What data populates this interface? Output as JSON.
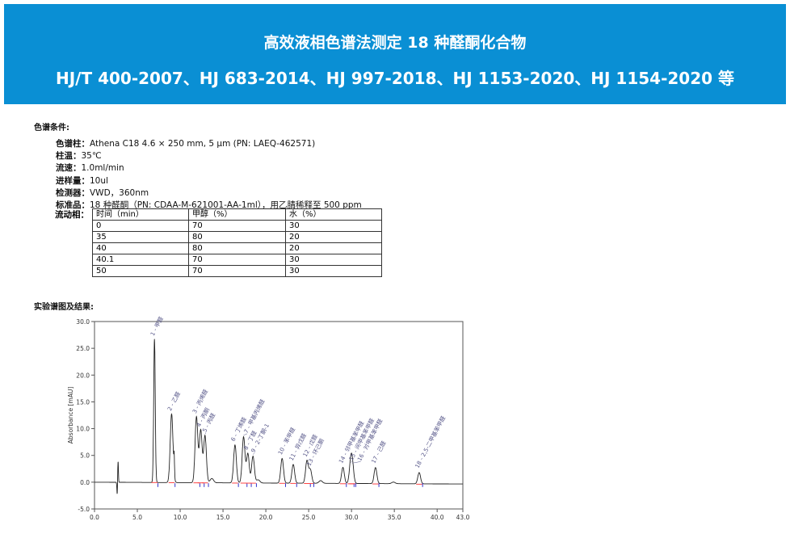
{
  "banner": {
    "title": "高效液相色谱法测定 18 种醛酮化合物",
    "standards": "HJ/T 400-2007、HJ 683-2014、HJ 997-2018、HJ 1153-2020、HJ 1154-2020 等"
  },
  "conditions": {
    "heading": "色谱条件:",
    "items": [
      {
        "k": "色谱柱：",
        "v": "Athena C18 4.6 × 250 mm, 5 μm (PN: LAEQ-462571)"
      },
      {
        "k": "柱温：",
        "v": "35℃"
      },
      {
        "k": "流速：",
        "v": "1.0ml/min"
      },
      {
        "k": "进样量：",
        "v": "10ul"
      },
      {
        "k": "检测器：",
        "v": "VWD，360nm"
      },
      {
        "k": "标准品：",
        "v": "18 种醛酮（PN: CDAA-M-621001-AA-1ml），用乙腈稀释至 500 ppm"
      }
    ],
    "mobile_phase_label": "流动相：",
    "table": {
      "headers": [
        "时间（min）",
        "甲醇（%）",
        "水（%）"
      ],
      "rows": [
        [
          "0",
          "70",
          "30"
        ],
        [
          "35",
          "80",
          "20"
        ],
        [
          "40",
          "80",
          "20"
        ],
        [
          "40.1",
          "70",
          "30"
        ],
        [
          "50",
          "70",
          "30"
        ]
      ]
    }
  },
  "results": {
    "heading": "实验谱图及结果:"
  },
  "chart_data": {
    "type": "line",
    "ylabel": "Absorbance [mAU]",
    "xlim": [
      0,
      43
    ],
    "ylim": [
      -5,
      30
    ],
    "xticks": [
      "0.0",
      "5.0",
      "10.0",
      "15.0",
      "20.0",
      "25.0",
      "30.0",
      "35.0",
      "40.0",
      "43.0"
    ],
    "yticks": [
      "-5.0",
      "0.0",
      "5.0",
      "10.0",
      "15.0",
      "20.0",
      "25.0",
      "30.0"
    ],
    "peaks": [
      {
        "t": 7.0,
        "h": 26.8,
        "label": "1 - 甲醛"
      },
      {
        "t": 9.0,
        "h": 12.8,
        "label": "2 - 乙醛"
      },
      {
        "t": 11.9,
        "h": 12.3,
        "label": "3 - 丙烯醛"
      },
      {
        "t": 12.4,
        "h": 9.8,
        "label": "4 - 丙酮"
      },
      {
        "t": 12.9,
        "h": 8.8,
        "label": "5 - 丙醛"
      },
      {
        "t": 16.4,
        "h": 7.1,
        "label": "6 - 丁烯醛"
      },
      {
        "t": 17.4,
        "h": 8.6,
        "label": "7 - 甲基丙烯醛"
      },
      {
        "t": 17.9,
        "h": 5.5,
        "label": "8 - 丁醛"
      },
      {
        "t": 18.5,
        "h": 5.0,
        "label": "9 - 2-丁酮-1"
      },
      {
        "t": 21.9,
        "h": 4.6,
        "label": "10 - 苯甲醛"
      },
      {
        "t": 23.2,
        "h": 3.5,
        "label": "11 - 异戊醛"
      },
      {
        "t": 24.8,
        "h": 4.2,
        "label": "12 - 戊醛"
      },
      {
        "t": 25.2,
        "h": 2.5,
        "label": "13 - 环己酮"
      },
      {
        "t": 29.0,
        "h": 3.0,
        "label": "14 - 邻甲基苯甲醛"
      },
      {
        "t": 29.9,
        "h": 3.5,
        "label": "15 - 间甲基苯甲醛"
      },
      {
        "t": 30.1,
        "h": 3.4,
        "label": "16 - 对甲基苯甲醛"
      },
      {
        "t": 32.8,
        "h": 3.0,
        "label": "17 - 己醛"
      },
      {
        "t": 37.9,
        "h": 2.1,
        "label": "18 - 2,5-二甲基苯甲醛"
      }
    ],
    "minor_peaks": [
      {
        "t": 2.75,
        "h": 4.0
      },
      {
        "t": 2.65,
        "h": -2.3
      },
      {
        "t": 9.3,
        "h": 3.6
      },
      {
        "t": 13.7,
        "h": 0.8
      },
      {
        "t": 19.1,
        "h": 0.6
      },
      {
        "t": 26.4,
        "h": 0.5
      },
      {
        "t": 34.9,
        "h": 0.3
      }
    ],
    "colors": {
      "trace": "#222222",
      "labels": "#555588",
      "baseline_marks": "#ff4444",
      "peak_marks": "#3333cc"
    }
  }
}
